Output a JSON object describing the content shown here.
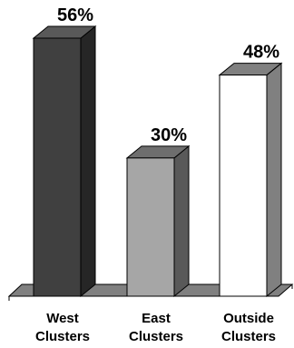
{
  "chart_data": {
    "type": "bar",
    "style": "3d-column",
    "categories": [
      "West Clusters",
      "East Clusters",
      "Outside Clusters"
    ],
    "category_lines": [
      [
        "West",
        "Clusters"
      ],
      [
        "East",
        "Clusters"
      ],
      [
        "Outside",
        "Clusters"
      ]
    ],
    "values": [
      56,
      30,
      48
    ],
    "data_labels": [
      "56%",
      "30%",
      "48%"
    ],
    "unit": "%",
    "ylim": [
      0,
      60
    ],
    "grid": false,
    "legend": "none",
    "title": "",
    "xlabel": "",
    "ylabel": "",
    "colors": {
      "bar_fronts": [
        "#404040",
        "#a6a6a6",
        "#ffffff"
      ],
      "bar_sides": [
        "#262626",
        "#595959",
        "#808080"
      ],
      "bar_tops": [
        "#595959",
        "#6e6e6e",
        "#808080"
      ],
      "floor": "#808080",
      "outline": "#000000"
    }
  }
}
